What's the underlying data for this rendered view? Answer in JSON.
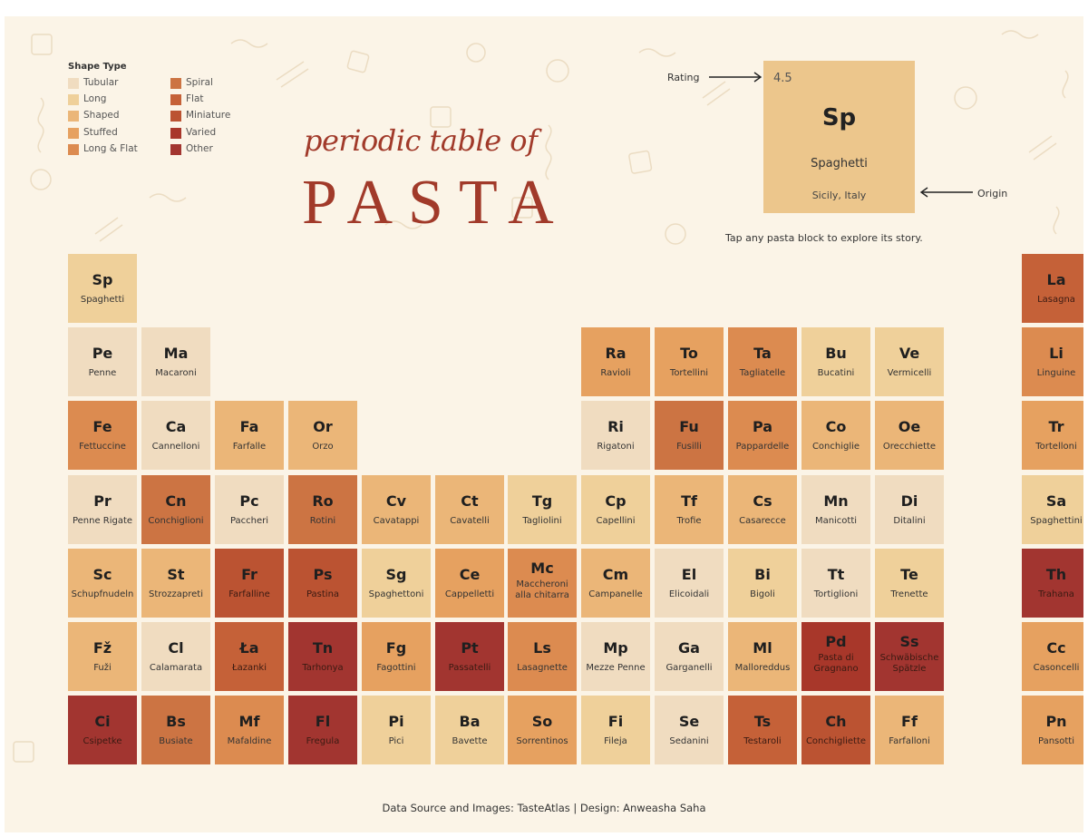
{
  "legend": {
    "title": "Shape Type",
    "items": [
      {
        "label": "Tubular",
        "color": "#f0dcc0"
      },
      {
        "label": "Long",
        "color": "#efd09a"
      },
      {
        "label": "Shaped",
        "color": "#ebb678"
      },
      {
        "label": "Stuffed",
        "color": "#e6a160"
      },
      {
        "label": "Long & Flat",
        "color": "#dc8b50"
      },
      {
        "label": "Spiral",
        "color": "#cc7443"
      },
      {
        "label": "Flat",
        "color": "#c56138"
      },
      {
        "label": "Miniature",
        "color": "#bb5332"
      },
      {
        "label": "Varied",
        "color": "#a8372a"
      },
      {
        "label": "Other",
        "color": "#a23530"
      }
    ]
  },
  "title": {
    "line1": "periodic table of",
    "line2": "PASTA"
  },
  "key": {
    "rating": "4.5",
    "symbol": "Sp",
    "name": "Spaghetti",
    "origin": "Sicily, Italy",
    "rating_label": "Rating",
    "origin_label": "Origin",
    "hint": "Tap any pasta block to explore its story."
  },
  "colors": {
    "Tubular": "#f0dcc0",
    "Long": "#efd09a",
    "Shaped": "#ebb678",
    "Stuffed": "#e6a160",
    "LongFlat": "#dc8b50",
    "Spiral": "#cc7443",
    "Flat": "#c56138",
    "Miniature": "#bb5332",
    "Varied": "#a8372a",
    "Other": "#a23530"
  },
  "tiles": [
    {
      "symbol": "Sp",
      "name": "Spaghetti",
      "type": "Long",
      "row": 0,
      "col": 0
    },
    {
      "symbol": "La",
      "name": "Lasagna",
      "type": "Flat",
      "row": 0,
      "col": 13
    },
    {
      "symbol": "Pe",
      "name": "Penne",
      "type": "Tubular",
      "row": 1,
      "col": 0
    },
    {
      "symbol": "Ma",
      "name": "Macaroni",
      "type": "Tubular",
      "row": 1,
      "col": 1
    },
    {
      "symbol": "Ra",
      "name": "Ravioli",
      "type": "Stuffed",
      "row": 1,
      "col": 7
    },
    {
      "symbol": "To",
      "name": "Tortellini",
      "type": "Stuffed",
      "row": 1,
      "col": 8
    },
    {
      "symbol": "Ta",
      "name": "Tagliatelle",
      "type": "LongFlat",
      "row": 1,
      "col": 9
    },
    {
      "symbol": "Bu",
      "name": "Bucatini",
      "type": "Long",
      "row": 1,
      "col": 10
    },
    {
      "symbol": "Ve",
      "name": "Vermicelli",
      "type": "Long",
      "row": 1,
      "col": 11
    },
    {
      "symbol": "Li",
      "name": "Linguine",
      "type": "LongFlat",
      "row": 1,
      "col": 13
    },
    {
      "symbol": "Fe",
      "name": "Fettuccine",
      "type": "LongFlat",
      "row": 2,
      "col": 0
    },
    {
      "symbol": "Ca",
      "name": "Cannelloni",
      "type": "Tubular",
      "row": 2,
      "col": 1
    },
    {
      "symbol": "Fa",
      "name": "Farfalle",
      "type": "Shaped",
      "row": 2,
      "col": 2
    },
    {
      "symbol": "Or",
      "name": "Orzo",
      "type": "Shaped",
      "row": 2,
      "col": 3
    },
    {
      "symbol": "Ri",
      "name": "Rigatoni",
      "type": "Tubular",
      "row": 2,
      "col": 7
    },
    {
      "symbol": "Fu",
      "name": "Fusilli",
      "type": "Spiral",
      "row": 2,
      "col": 8
    },
    {
      "symbol": "Pa",
      "name": "Pappardelle",
      "type": "LongFlat",
      "row": 2,
      "col": 9
    },
    {
      "symbol": "Co",
      "name": "Conchiglie",
      "type": "Shaped",
      "row": 2,
      "col": 10
    },
    {
      "symbol": "Oe",
      "name": "Orecchiette",
      "type": "Shaped",
      "row": 2,
      "col": 11
    },
    {
      "symbol": "Tr",
      "name": "Tortelloni",
      "type": "Stuffed",
      "row": 2,
      "col": 13
    },
    {
      "symbol": "Pr",
      "name": "Penne Rigate",
      "type": "Tubular",
      "row": 3,
      "col": 0
    },
    {
      "symbol": "Cn",
      "name": "Conchiglioni",
      "type": "Spiral",
      "row": 3,
      "col": 1
    },
    {
      "symbol": "Pc",
      "name": "Paccheri",
      "type": "Tubular",
      "row": 3,
      "col": 2
    },
    {
      "symbol": "Ro",
      "name": "Rotini",
      "type": "Spiral",
      "row": 3,
      "col": 3
    },
    {
      "symbol": "Cv",
      "name": "Cavatappi",
      "type": "Shaped",
      "row": 3,
      "col": 4
    },
    {
      "symbol": "Ct",
      "name": "Cavatelli",
      "type": "Shaped",
      "row": 3,
      "col": 5
    },
    {
      "symbol": "Tg",
      "name": "Tagliolini",
      "type": "Long",
      "row": 3,
      "col": 6
    },
    {
      "symbol": "Cp",
      "name": "Capellini",
      "type": "Long",
      "row": 3,
      "col": 7
    },
    {
      "symbol": "Tf",
      "name": "Trofie",
      "type": "Shaped",
      "row": 3,
      "col": 8
    },
    {
      "symbol": "Cs",
      "name": "Casarecce",
      "type": "Shaped",
      "row": 3,
      "col": 9
    },
    {
      "symbol": "Mn",
      "name": "Manicotti",
      "type": "Tubular",
      "row": 3,
      "col": 10
    },
    {
      "symbol": "Di",
      "name": "Ditalini",
      "type": "Tubular",
      "row": 3,
      "col": 11
    },
    {
      "symbol": "Sa",
      "name": "Spaghettini",
      "type": "Long",
      "row": 3,
      "col": 13
    },
    {
      "symbol": "Sc",
      "name": "Schupfnudeln",
      "type": "Shaped",
      "row": 4,
      "col": 0
    },
    {
      "symbol": "St",
      "name": "Strozzapreti",
      "type": "Shaped",
      "row": 4,
      "col": 1
    },
    {
      "symbol": "Fr",
      "name": "Farfalline",
      "type": "Miniature",
      "row": 4,
      "col": 2
    },
    {
      "symbol": "Ps",
      "name": "Pastina",
      "type": "Miniature",
      "row": 4,
      "col": 3
    },
    {
      "symbol": "Sg",
      "name": "Spaghettoni",
      "type": "Long",
      "row": 4,
      "col": 4
    },
    {
      "symbol": "Ce",
      "name": "Cappelletti",
      "type": "Stuffed",
      "row": 4,
      "col": 5
    },
    {
      "symbol": "Mc",
      "name": "Maccheroni alla chitarra",
      "type": "LongFlat",
      "row": 4,
      "col": 6,
      "two": true
    },
    {
      "symbol": "Cm",
      "name": "Campanelle",
      "type": "Shaped",
      "row": 4,
      "col": 7
    },
    {
      "symbol": "El",
      "name": "Elicoidali",
      "type": "Tubular",
      "row": 4,
      "col": 8
    },
    {
      "symbol": "Bi",
      "name": "Bigoli",
      "type": "Long",
      "row": 4,
      "col": 9
    },
    {
      "symbol": "Tt",
      "name": "Tortiglioni",
      "type": "Tubular",
      "row": 4,
      "col": 10
    },
    {
      "symbol": "Te",
      "name": "Trenette",
      "type": "Long",
      "row": 4,
      "col": 11
    },
    {
      "symbol": "Th",
      "name": "Trahana",
      "type": "Other",
      "row": 4,
      "col": 13
    },
    {
      "symbol": "Fž",
      "name": "Fuži",
      "type": "Shaped",
      "row": 5,
      "col": 0
    },
    {
      "symbol": "Cl",
      "name": "Calamarata",
      "type": "Tubular",
      "row": 5,
      "col": 1
    },
    {
      "symbol": "Ła",
      "name": "Łazanki",
      "type": "Flat",
      "row": 5,
      "col": 2
    },
    {
      "symbol": "Tn",
      "name": "Tarhonya",
      "type": "Other",
      "row": 5,
      "col": 3
    },
    {
      "symbol": "Fg",
      "name": "Fagottini",
      "type": "Stuffed",
      "row": 5,
      "col": 4
    },
    {
      "symbol": "Pt",
      "name": "Passatelli",
      "type": "Other",
      "row": 5,
      "col": 5
    },
    {
      "symbol": "Ls",
      "name": "Lasagnette",
      "type": "LongFlat",
      "row": 5,
      "col": 6
    },
    {
      "symbol": "Mp",
      "name": "Mezze Penne",
      "type": "Tubular",
      "row": 5,
      "col": 7
    },
    {
      "symbol": "Ga",
      "name": "Garganelli",
      "type": "Tubular",
      "row": 5,
      "col": 8
    },
    {
      "symbol": "Ml",
      "name": "Malloreddus",
      "type": "Shaped",
      "row": 5,
      "col": 9
    },
    {
      "symbol": "Pd",
      "name": "Pasta di Gragnano",
      "type": "Varied",
      "row": 5,
      "col": 10,
      "two": true
    },
    {
      "symbol": "Ss",
      "name": "Schwäbische Spätzle",
      "type": "Other",
      "row": 5,
      "col": 11,
      "two": true
    },
    {
      "symbol": "Cc",
      "name": "Casoncelli",
      "type": "Stuffed",
      "row": 5,
      "col": 13
    },
    {
      "symbol": "Ci",
      "name": "Csipetke",
      "type": "Other",
      "row": 6,
      "col": 0
    },
    {
      "symbol": "Bs",
      "name": "Busiate",
      "type": "Spiral",
      "row": 6,
      "col": 1
    },
    {
      "symbol": "Mf",
      "name": "Mafaldine",
      "type": "LongFlat",
      "row": 6,
      "col": 2
    },
    {
      "symbol": "Fl",
      "name": "Fregula",
      "type": "Other",
      "row": 6,
      "col": 3
    },
    {
      "symbol": "Pi",
      "name": "Pici",
      "type": "Long",
      "row": 6,
      "col": 4
    },
    {
      "symbol": "Ba",
      "name": "Bavette",
      "type": "Long",
      "row": 6,
      "col": 5
    },
    {
      "symbol": "So",
      "name": "Sorrentinos",
      "type": "Stuffed",
      "row": 6,
      "col": 6
    },
    {
      "symbol": "Fi",
      "name": "Fileja",
      "type": "Long",
      "row": 6,
      "col": 7
    },
    {
      "symbol": "Se",
      "name": "Sedanini",
      "type": "Tubular",
      "row": 6,
      "col": 8
    },
    {
      "symbol": "Ts",
      "name": "Testaroli",
      "type": "Flat",
      "row": 6,
      "col": 9
    },
    {
      "symbol": "Ch",
      "name": "Conchigliette",
      "type": "Miniature",
      "row": 6,
      "col": 10
    },
    {
      "symbol": "Ff",
      "name": "Farfalloni",
      "type": "Shaped",
      "row": 6,
      "col": 11
    },
    {
      "symbol": "Pn",
      "name": "Pansotti",
      "type": "Stuffed",
      "row": 6,
      "col": 13
    }
  ],
  "footer": "Data Source and Images: TasteAtlas   |   Design: Anweasha Saha"
}
